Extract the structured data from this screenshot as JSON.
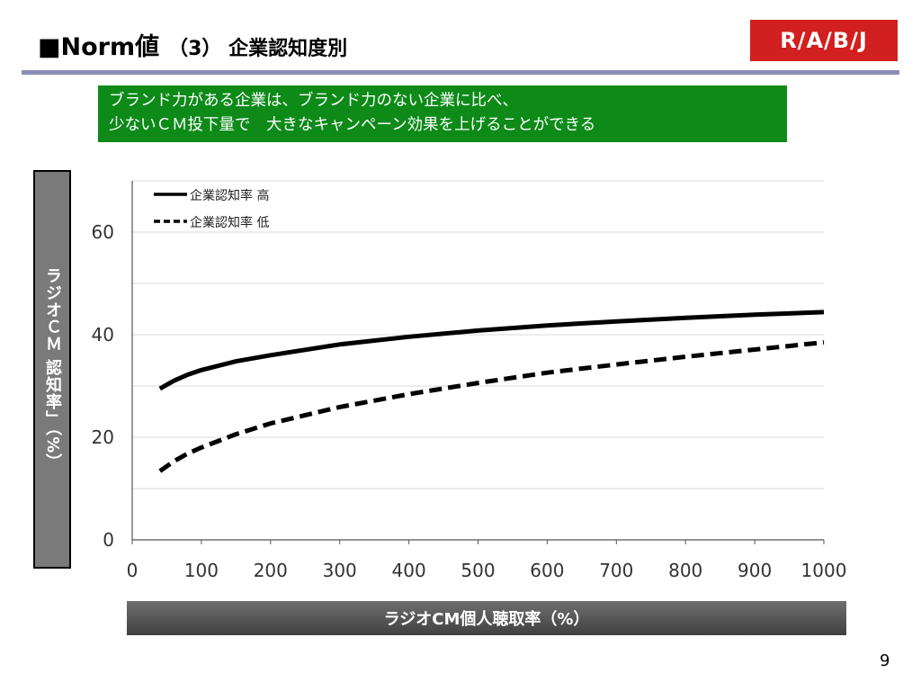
{
  "header": {
    "title": "■Norm値",
    "subtitle": "（3） 企業認知度別",
    "logo": "R/A/B/J"
  },
  "callout": {
    "line1": "ブランド力がある企業は、ブランド力のない企業に比べ、",
    "line2": "少ないＣＭ投下量で　大きなキャンペーン効果を上げることができる"
  },
  "page_number": "9",
  "colors": {
    "logo_red": "#d21f1f",
    "callout_green": "#0d8a18",
    "rule": "#8b8db6"
  },
  "chart_data": {
    "type": "line",
    "xlabel": "ラジオCM個人聴取率（%）",
    "ylabel": "ラジオＣＭ 認知率」（%）",
    "xlim": [
      0,
      1000
    ],
    "ylim": [
      0,
      70
    ],
    "xticks": [
      0,
      100,
      200,
      300,
      400,
      500,
      600,
      700,
      800,
      900,
      1000
    ],
    "yticks": [
      0,
      20,
      40,
      60
    ],
    "grid": true,
    "legend_position": "top-left",
    "series": [
      {
        "name": "企業認知率 高",
        "style": "solid",
        "x": [
          40,
          60,
          80,
          100,
          150,
          200,
          300,
          400,
          500,
          600,
          700,
          800,
          900,
          1000
        ],
        "y": [
          29.5,
          31,
          32.2,
          33.1,
          34.8,
          36,
          38.1,
          39.6,
          40.8,
          41.8,
          42.6,
          43.3,
          43.9,
          44.4
        ]
      },
      {
        "name": "企業認知率 低",
        "style": "dashed",
        "x": [
          40,
          60,
          80,
          100,
          150,
          200,
          300,
          400,
          500,
          600,
          700,
          800,
          900,
          1000
        ],
        "y": [
          13.4,
          15.3,
          16.8,
          18,
          20.6,
          22.7,
          25.9,
          28.4,
          30.6,
          32.6,
          34.2,
          35.7,
          37.1,
          38.5
        ]
      }
    ]
  }
}
